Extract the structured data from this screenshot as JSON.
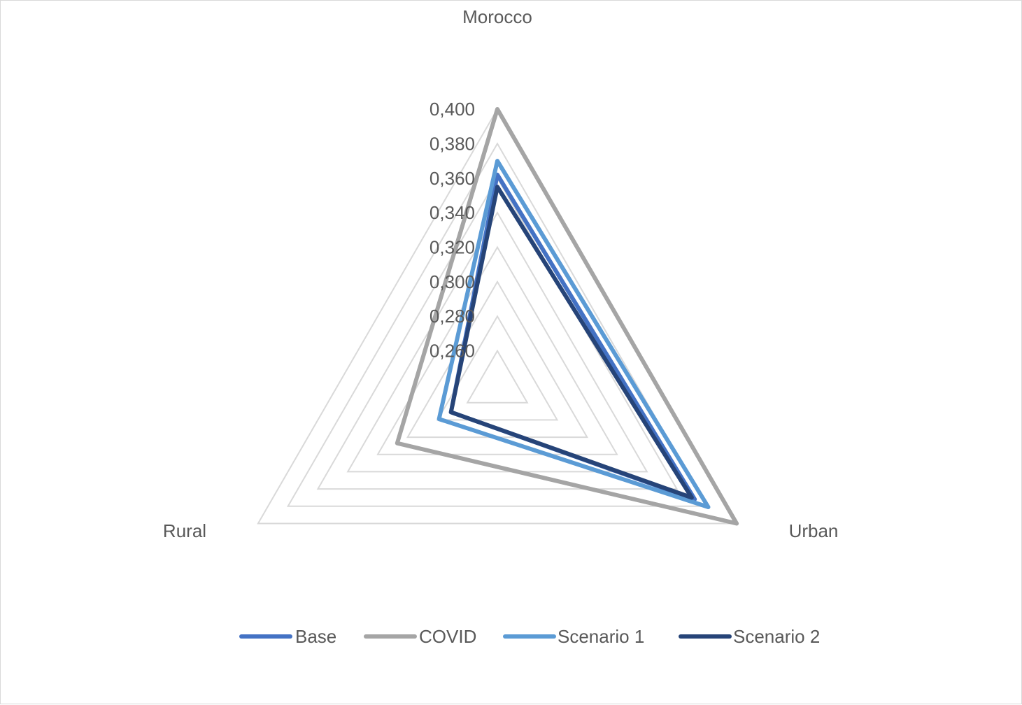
{
  "chart_data": {
    "type": "radar",
    "title": "",
    "axes": [
      "Morocco",
      "Urban",
      "Rural"
    ],
    "rlim": [
      0.24,
      0.4
    ],
    "rticks": [
      0.26,
      0.28,
      0.3,
      0.32,
      0.34,
      0.36,
      0.38,
      0.4
    ],
    "tick_labels": [
      "0,260",
      "0,280",
      "0,300",
      "0,320",
      "0,340",
      "0,360",
      "0,380",
      "0,400"
    ],
    "grid": true,
    "legend_position": "bottom",
    "series": [
      {
        "name": "Base",
        "color": "#4472c4",
        "values": [
          0.362,
          0.372,
          0.271
        ]
      },
      {
        "name": "COVID",
        "color": "#a5a5a5",
        "values": [
          0.4,
          0.4,
          0.307
        ]
      },
      {
        "name": "Scenario 1",
        "color": "#5b9bd5",
        "values": [
          0.37,
          0.381,
          0.279
        ]
      },
      {
        "name": "Scenario 2",
        "color": "#264478",
        "values": [
          0.355,
          0.37,
          0.271
        ]
      }
    ]
  }
}
